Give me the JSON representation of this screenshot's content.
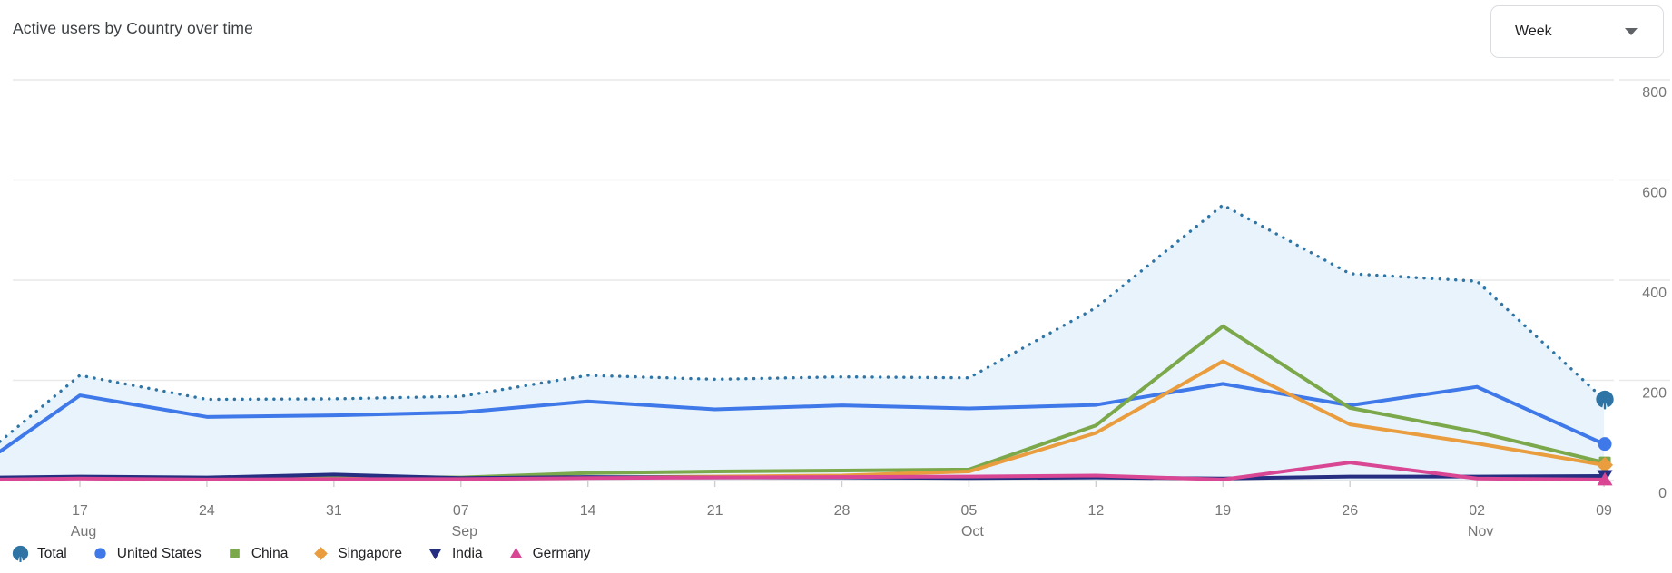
{
  "header": {
    "title": "Active users by Country over time",
    "interval_selector": {
      "value": "Week",
      "caret_icon": "chevron-down-icon"
    }
  },
  "chart_data": {
    "type": "area",
    "title": "Active users by Country over time",
    "legend_position": "bottom",
    "grid": true,
    "y_axis_side": "right",
    "ylim": [
      0,
      800
    ],
    "y_ticks": [
      0,
      200,
      400,
      600,
      800
    ],
    "x_tick_labels": [
      {
        "day": "17",
        "month": "Aug"
      },
      {
        "day": "24",
        "month": ""
      },
      {
        "day": "31",
        "month": ""
      },
      {
        "day": "07",
        "month": "Sep"
      },
      {
        "day": "14",
        "month": ""
      },
      {
        "day": "21",
        "month": ""
      },
      {
        "day": "28",
        "month": ""
      },
      {
        "day": "05",
        "month": "Oct"
      },
      {
        "day": "12",
        "month": ""
      },
      {
        "day": "19",
        "month": ""
      },
      {
        "day": "26",
        "month": ""
      },
      {
        "day": "02",
        "month": "Nov"
      },
      {
        "day": "09",
        "month": ""
      }
    ],
    "series": [
      {
        "name": "Total",
        "color": "#2e74a4",
        "style": "dotted",
        "marker": "fan",
        "area_fill": "#e9f3fb",
        "lead_in": 78,
        "values": [
          210,
          162,
          163,
          168,
          210,
          202,
          207,
          205,
          345,
          550,
          413,
          398,
          162
        ]
      },
      {
        "name": "United States",
        "color": "#3e78e9",
        "style": "solid",
        "marker": "circle",
        "area_fill": null,
        "lead_in": 58,
        "values": [
          170,
          127,
          130,
          136,
          158,
          142,
          150,
          144,
          151,
          193,
          150,
          187,
          73
        ]
      },
      {
        "name": "China",
        "color": "#7ba84a",
        "style": "solid",
        "marker": "square",
        "area_fill": null,
        "lead_in": 3,
        "values": [
          5,
          3,
          8,
          6,
          15,
          18,
          20,
          22,
          110,
          308,
          145,
          97,
          36
        ]
      },
      {
        "name": "Singapore",
        "color": "#e99d3e",
        "style": "solid",
        "marker": "diamond",
        "area_fill": null,
        "lead_in": 4,
        "values": [
          6,
          4,
          3,
          4,
          6,
          8,
          10,
          18,
          95,
          238,
          112,
          74,
          31
        ]
      },
      {
        "name": "India",
        "color": "#252e80",
        "style": "solid",
        "marker": "triangle-down",
        "area_fill": null,
        "lead_in": 6,
        "values": [
          8,
          6,
          12,
          5,
          7,
          6,
          6,
          5,
          6,
          4,
          8,
          8,
          9
        ]
      },
      {
        "name": "Germany",
        "color": "#d84694",
        "style": "solid",
        "marker": "triangle-up",
        "area_fill": null,
        "lead_in": 2,
        "values": [
          4,
          2,
          3,
          3,
          5,
          6,
          7,
          8,
          10,
          2,
          36,
          4,
          2
        ]
      }
    ],
    "colors": {
      "gridline": "#e9e9e9",
      "axis_baseline": "#e0e0e0",
      "tick_stub": "#cfcfcf",
      "axis_label": "#757575"
    }
  }
}
